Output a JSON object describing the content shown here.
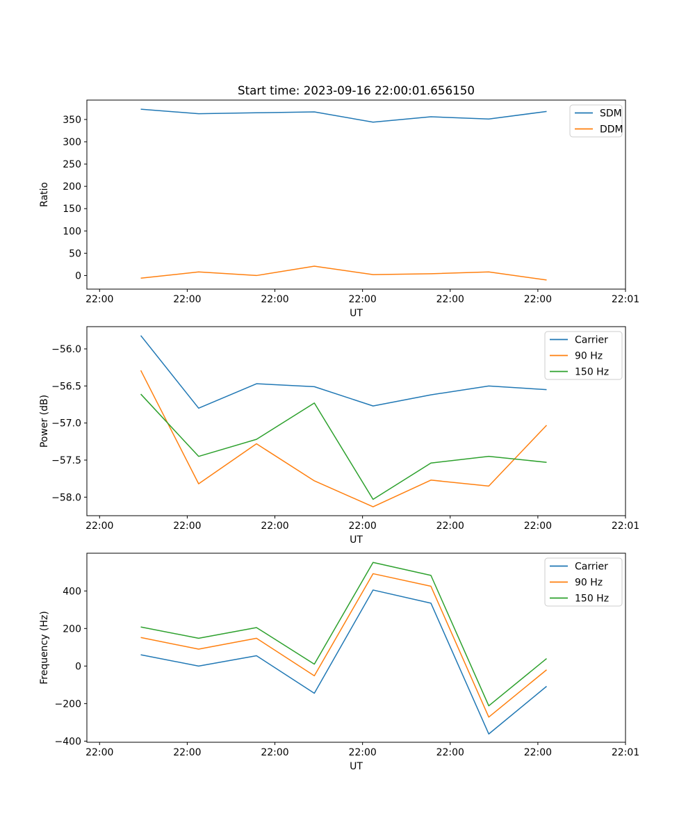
{
  "figure": {
    "title": "Start time: 2023-09-16 22:00:01.656150",
    "background": "#ffffff"
  },
  "palette": {
    "blue": "#1f77b4",
    "orange": "#ff7f0e",
    "green": "#2ca02c",
    "spine": "#000000",
    "legend_border": "#cccccc"
  },
  "chart_data": [
    {
      "id": "ratio",
      "type": "line",
      "title": "Start time: 2023-09-16 22:00:01.656150",
      "xlabel": "UT",
      "ylabel": "Ratio",
      "grid": false,
      "x_seconds_after_2200": [
        4.7,
        11.3,
        17.9,
        24.5,
        31.2,
        37.8,
        44.4,
        51.0
      ],
      "xlim": [
        -1.45,
        60
      ],
      "ylim": [
        -30.5,
        393.5
      ],
      "xtick_values": [
        0,
        10,
        20,
        30,
        40,
        50,
        60
      ],
      "xtick_labels": [
        "22:00",
        "22:00",
        "22:00",
        "22:00",
        "22:00",
        "22:00",
        "22:01"
      ],
      "ytick_values": [
        0,
        50,
        100,
        150,
        200,
        250,
        300,
        350
      ],
      "ytick_labels": [
        "0",
        "50",
        "100",
        "150",
        "200",
        "250",
        "300",
        "350"
      ],
      "legend": {
        "loc": "upper right"
      },
      "series": [
        {
          "name": "SDM",
          "color": "#1f77b4",
          "values": [
            373,
            363,
            365,
            367,
            344,
            356,
            351,
            368
          ]
        },
        {
          "name": "DDM",
          "color": "#ff7f0e",
          "values": [
            -6,
            8,
            0,
            21,
            2,
            4,
            8,
            -10
          ]
        }
      ]
    },
    {
      "id": "power",
      "type": "line",
      "title": "",
      "xlabel": "UT",
      "ylabel": "Power (dB)",
      "grid": false,
      "x_seconds_after_2200": [
        4.7,
        11.3,
        17.9,
        24.5,
        31.2,
        37.8,
        44.4,
        51.0
      ],
      "xlim": [
        -1.45,
        60
      ],
      "ylim": [
        -58.25,
        -55.7
      ],
      "xtick_values": [
        0,
        10,
        20,
        30,
        40,
        50,
        60
      ],
      "xtick_labels": [
        "22:00",
        "22:00",
        "22:00",
        "22:00",
        "22:00",
        "22:00",
        "22:01"
      ],
      "ytick_values": [
        -58.0,
        -57.5,
        -57.0,
        -56.5,
        -56.0
      ],
      "ytick_labels": [
        "−58.0",
        "−57.5",
        "−57.0",
        "−56.5",
        "−56.0"
      ],
      "legend": {
        "loc": "upper right"
      },
      "series": [
        {
          "name": "Carrier",
          "color": "#1f77b4",
          "values": [
            -55.82,
            -56.8,
            -56.47,
            -56.51,
            -56.77,
            -56.62,
            -56.5,
            -56.55
          ]
        },
        {
          "name": "90 Hz",
          "color": "#ff7f0e",
          "values": [
            -56.29,
            -57.82,
            -57.28,
            -57.78,
            -58.13,
            -57.77,
            -57.85,
            -57.03
          ]
        },
        {
          "name": "150 Hz",
          "color": "#2ca02c",
          "values": [
            -56.61,
            -57.45,
            -57.22,
            -56.73,
            -58.03,
            -57.54,
            -57.45,
            -57.53
          ]
        }
      ]
    },
    {
      "id": "frequency",
      "type": "line",
      "title": "",
      "xlabel": "UT",
      "ylabel": "Frequency (Hz)",
      "grid": false,
      "x_seconds_after_2200": [
        4.7,
        11.3,
        17.9,
        24.5,
        31.2,
        37.8,
        44.4,
        51.0
      ],
      "xlim": [
        -1.45,
        60
      ],
      "ylim": [
        -406,
        601
      ],
      "xtick_values": [
        0,
        10,
        20,
        30,
        40,
        50,
        60
      ],
      "xtick_labels": [
        "22:00",
        "22:00",
        "22:00",
        "22:00",
        "22:00",
        "22:00",
        "22:01"
      ],
      "ytick_values": [
        -400,
        -200,
        0,
        200,
        400
      ],
      "ytick_labels": [
        "−400",
        "−200",
        "0",
        "200",
        "400"
      ],
      "legend": {
        "loc": "upper right"
      },
      "series": [
        {
          "name": "Carrier",
          "color": "#1f77b4",
          "values": [
            60,
            0,
            55,
            -145,
            405,
            335,
            -362,
            -108
          ]
        },
        {
          "name": "90 Hz",
          "color": "#ff7f0e",
          "values": [
            152,
            90,
            148,
            -52,
            492,
            425,
            -272,
            -20
          ]
        },
        {
          "name": "150 Hz",
          "color": "#2ca02c",
          "values": [
            208,
            148,
            205,
            10,
            552,
            483,
            -212,
            40
          ]
        }
      ]
    }
  ]
}
